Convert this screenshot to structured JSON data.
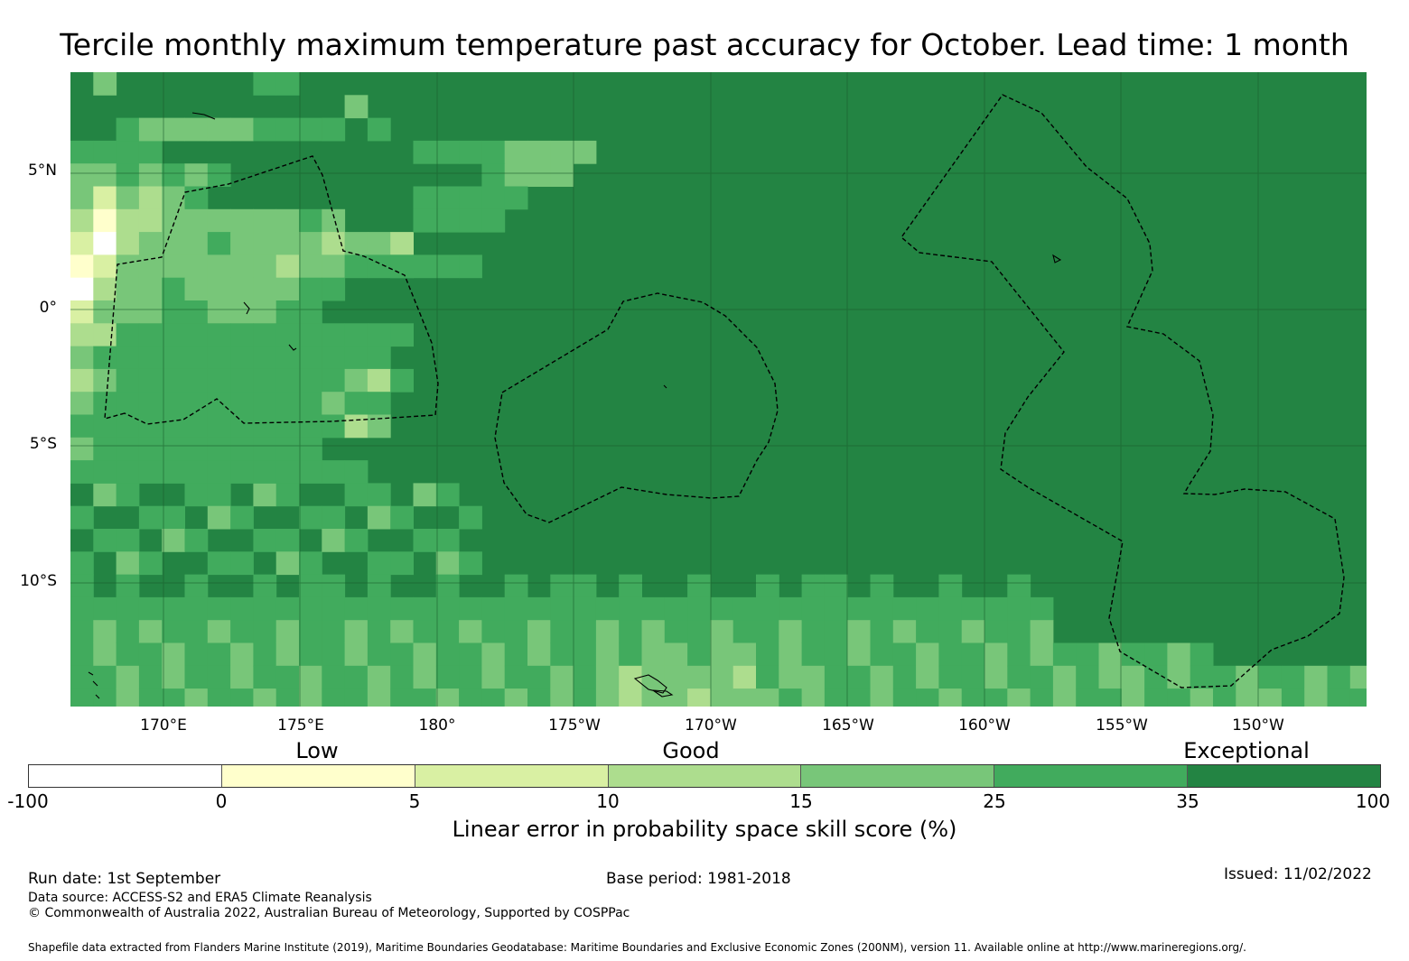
{
  "title": "Tercile monthly maximum temperature past accuracy for October. Lead time: 1 month",
  "map": {
    "lat_ticks": [
      "5°N",
      "0°",
      "5°S",
      "10°S"
    ],
    "lon_ticks": [
      "170°E",
      "175°E",
      "180°",
      "175°W",
      "170°W",
      "165°W",
      "160°W",
      "155°W",
      "150°W"
    ],
    "extent": {
      "lon_min": 166.6,
      "lon_max": 213.9,
      "lat_min": -14.6,
      "lat_max": 8.7
    }
  },
  "legend": {
    "category_labels": [
      "Low",
      "Good",
      "Exceptional"
    ],
    "bins": [
      {
        "range": "-100 to 0",
        "color": "#ffffff"
      },
      {
        "range": "0 to 5",
        "color": "#ffffcc"
      },
      {
        "range": "5 to 10",
        "color": "#d9f0a3"
      },
      {
        "range": "10 to 15",
        "color": "#addd8e"
      },
      {
        "range": "15 to 25",
        "color": "#78c679"
      },
      {
        "range": "25 to 35",
        "color": "#41ab5d"
      },
      {
        "range": "35 to 100",
        "color": "#238443"
      }
    ],
    "ticks": [
      "-100",
      "0",
      "5",
      "10",
      "15",
      "25",
      "35",
      "100"
    ],
    "title": "Linear error in probability space skill score (%)"
  },
  "footer": {
    "run_date": "Run date: 1st September",
    "base_period": "Base period: 1981-2018",
    "issued": "Issued: 11/02/2022",
    "data_source": "Data source: ACCESS-S2 and ERA5 Climate Reanalysis",
    "copyright": "© Commonwealth of Australia 2022, Australian Bureau of Meteorology, Supported by COSPPac",
    "shapefile": "Shapefile data extracted from Flanders Marine Institute (2019), Maritime Boundaries Geodatabase: Maritime Boundaries and Exclusive Economic Zones (200NM), version 11. Available online at http://www.marineregions.org/."
  }
}
